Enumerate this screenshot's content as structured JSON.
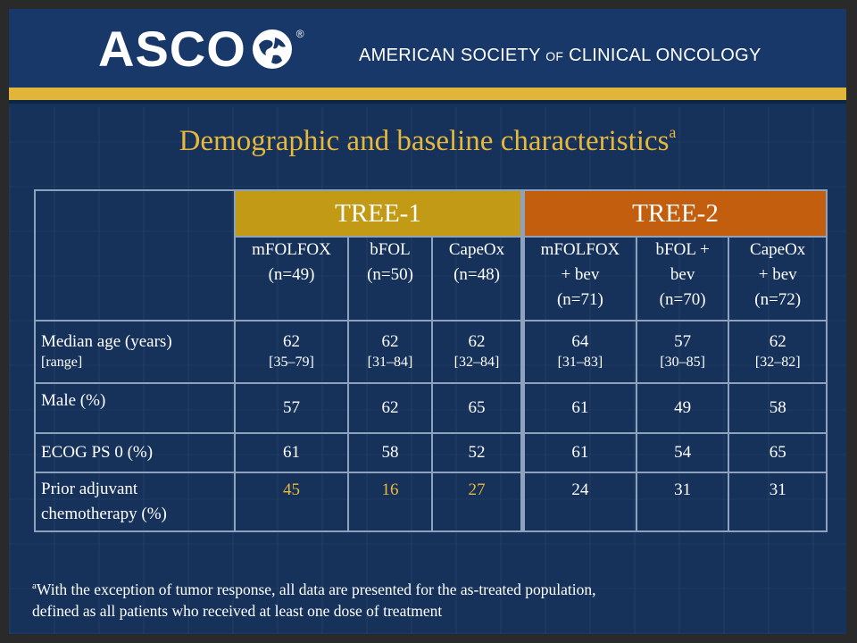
{
  "header": {
    "logo_text": "ASCO",
    "registered_mark": "®",
    "society_parts": [
      "AMERICAN SOCIETY ",
      "OF",
      " CLINICAL ONCOLOGY"
    ]
  },
  "title": {
    "text": "Demographic and baseline characteristics",
    "superscript": "a"
  },
  "table": {
    "groups": [
      "TREE-1",
      "TREE-2"
    ],
    "columns": [
      {
        "lines": [
          "mFOLFOX",
          "(n=49)"
        ]
      },
      {
        "lines": [
          "bFOL",
          "(n=50)"
        ]
      },
      {
        "lines": [
          "CapeOx",
          "(n=48)"
        ]
      },
      {
        "lines": [
          "mFOLFOX",
          "+ bev",
          "(n=71)"
        ]
      },
      {
        "lines": [
          "bFOL +",
          "bev",
          "(n=70)"
        ]
      },
      {
        "lines": [
          "CapeOx",
          "+ bev",
          "(n=72)"
        ]
      }
    ],
    "rows": [
      {
        "label": "Median age (years)",
        "sublabel": "[range]",
        "values": [
          "62",
          "62",
          "62",
          "64",
          "57",
          "62"
        ],
        "ranges": [
          "[35–79]",
          "[31–84]",
          "[32–84]",
          "[31–83]",
          "[30–85]",
          "[32–82]"
        ]
      },
      {
        "label": "Male (%)",
        "values": [
          "57",
          "62",
          "65",
          "61",
          "49",
          "58"
        ]
      },
      {
        "label": "ECOG PS 0 (%)",
        "values": [
          "61",
          "58",
          "52",
          "61",
          "54",
          "65"
        ]
      },
      {
        "label_lines": [
          "Prior adjuvant",
          "chemotherapy (%)"
        ],
        "values": [
          "45",
          "16",
          "27",
          "24",
          "31",
          "31"
        ]
      }
    ]
  },
  "footnote": {
    "marker": "a",
    "lines": [
      "With the exception of tumor response, all data are presented for the as-treated population,",
      "defined as all patients who received at least one dose of treatment"
    ]
  },
  "colors": {
    "background": "#16325a",
    "gold_bar": "#e1b43a",
    "title": "#e8b83a",
    "tree1_header": "#c39a16",
    "tree2_header": "#c35e0f",
    "highlight_values": "#e8b83a"
  }
}
